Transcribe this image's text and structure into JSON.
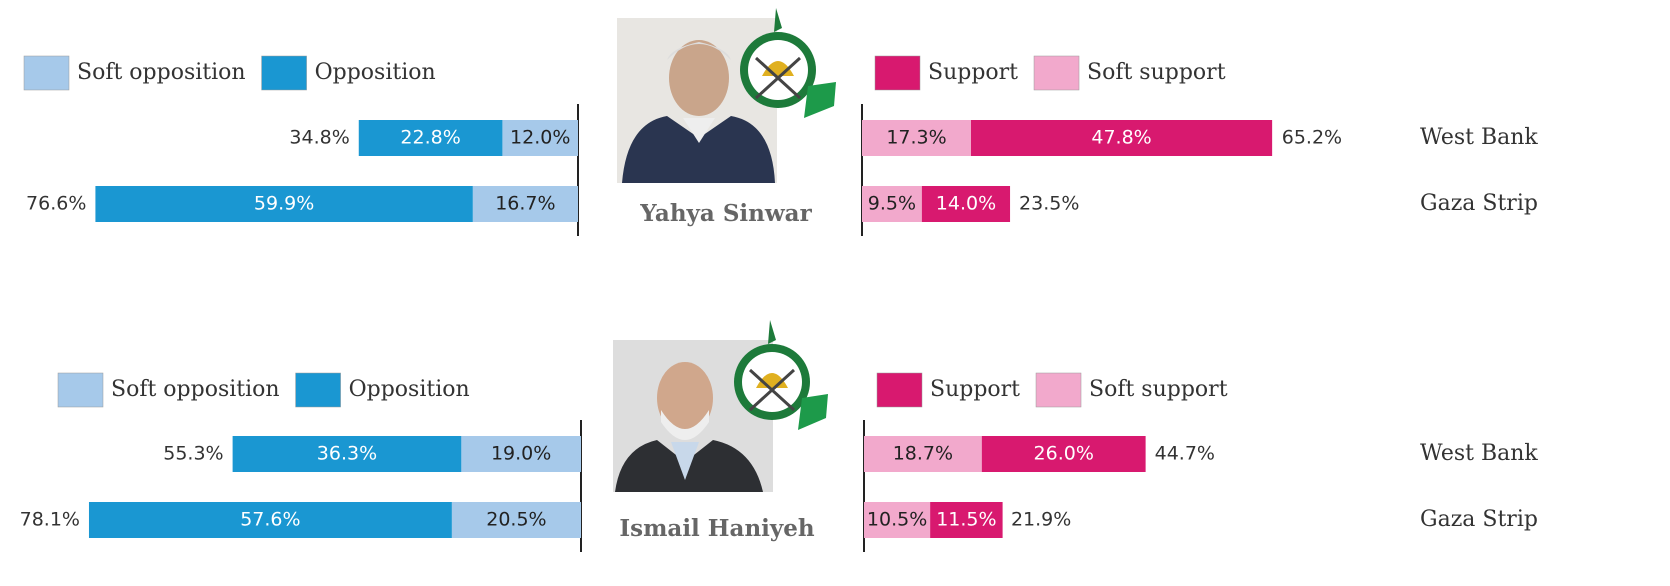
{
  "chart_data": [
    {
      "type": "diverging_bar",
      "title": "Yahya Sinwar",
      "categories": [
        "West Bank",
        "Gaza Strip"
      ],
      "series": [
        {
          "name": "Soft opposition",
          "side": "left",
          "color": "#a6c9ea",
          "label_color": "#222",
          "values": [
            12.0,
            16.7
          ],
          "value_labels": [
            "12.0%",
            "16.7%"
          ]
        },
        {
          "name": "Opposition",
          "side": "left",
          "color": "#1a97d2",
          "label_color": "#fff",
          "values": [
            22.8,
            59.9
          ],
          "value_labels": [
            "22.8%",
            "59.9%"
          ]
        },
        {
          "name": "Support",
          "side": "right",
          "color": "#d8196f",
          "label_color": "#fff",
          "values": [
            47.8,
            14.0
          ],
          "value_labels": [
            "47.8%",
            "14.0%"
          ]
        },
        {
          "name": "Soft support",
          "side": "right",
          "color": "#f2a9cc",
          "label_color": "#222",
          "values": [
            17.3,
            9.5
          ],
          "value_labels": [
            "17.3%",
            "9.5%"
          ]
        }
      ],
      "totals": [
        {
          "side": "left",
          "values": [
            34.8,
            76.6
          ],
          "value_labels": [
            "34.8%",
            "76.6%"
          ]
        },
        {
          "side": "right",
          "values": [
            65.2,
            23.5
          ],
          "value_labels": [
            "65.2%",
            "23.5%"
          ]
        }
      ]
    },
    {
      "type": "diverging_bar",
      "title": "Ismail Haniyeh",
      "categories": [
        "West Bank",
        "Gaza Strip"
      ],
      "series": [
        {
          "name": "Soft opposition",
          "side": "left",
          "color": "#a6c9ea",
          "label_color": "#222",
          "values": [
            19.0,
            20.5
          ],
          "value_labels": [
            "19.0%",
            "20.5%"
          ]
        },
        {
          "name": "Opposition",
          "side": "left",
          "color": "#1a97d2",
          "label_color": "#fff",
          "values": [
            36.3,
            57.6
          ],
          "value_labels": [
            "36.3%",
            "57.6%"
          ]
        },
        {
          "name": "Support",
          "side": "right",
          "color": "#d8196f",
          "label_color": "#fff",
          "values": [
            26.0,
            11.5
          ],
          "value_labels": [
            "26.0%",
            "11.5%"
          ]
        },
        {
          "name": "Soft support",
          "side": "right",
          "color": "#f2a9cc",
          "label_color": "#222",
          "values": [
            18.7,
            10.5
          ],
          "value_labels": [
            "18.7%",
            "10.5%"
          ]
        }
      ],
      "totals": [
        {
          "side": "left",
          "values": [
            55.3,
            78.1
          ],
          "value_labels": [
            "55.3%",
            "78.1%"
          ]
        },
        {
          "side": "right",
          "values": [
            44.7,
            21.9
          ],
          "value_labels": [
            "44.7%",
            "21.9%"
          ]
        }
      ]
    }
  ]
}
